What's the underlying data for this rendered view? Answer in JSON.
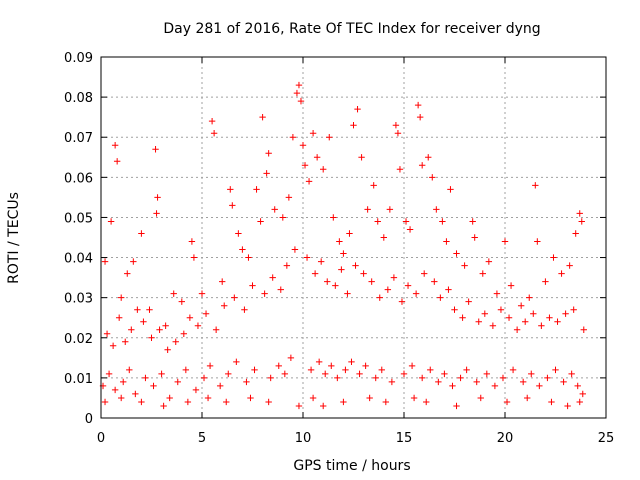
{
  "chart_data": {
    "type": "scatter",
    "title": "Day 281 of 2016, Rate Of TEC Index for receiver dyng",
    "xlabel": "GPS time / hours",
    "ylabel": "ROTI / TECUs",
    "xlim": [
      0,
      25
    ],
    "ylim": [
      0,
      0.09
    ],
    "x_ticks": [
      "0",
      "5",
      "10",
      "15",
      "20",
      "25"
    ],
    "y_ticks": [
      "0",
      "0.01",
      "0.02",
      "0.03",
      "0.04",
      "0.05",
      "0.06",
      "0.07",
      "0.08",
      "0.09"
    ],
    "grid": true,
    "marker": "+",
    "color": "#ff0000",
    "series": [
      {
        "name": "ROTI",
        "points": [
          [
            0.2,
            0.039
          ],
          [
            0.5,
            0.049
          ],
          [
            0.7,
            0.068
          ],
          [
            0.8,
            0.064
          ],
          [
            1.0,
            0.03
          ],
          [
            1.3,
            0.036
          ],
          [
            1.6,
            0.039
          ],
          [
            2.0,
            0.046
          ],
          [
            2.4,
            0.027
          ],
          [
            2.7,
            0.067
          ],
          [
            2.8,
            0.055
          ],
          [
            2.75,
            0.051
          ],
          [
            3.2,
            0.023
          ],
          [
            3.6,
            0.031
          ],
          [
            4.0,
            0.029
          ],
          [
            4.5,
            0.044
          ],
          [
            4.6,
            0.04
          ],
          [
            5.0,
            0.031
          ],
          [
            5.5,
            0.074
          ],
          [
            5.6,
            0.071
          ],
          [
            6.0,
            0.034
          ],
          [
            6.4,
            0.057
          ],
          [
            6.5,
            0.053
          ],
          [
            6.8,
            0.046
          ],
          [
            7.0,
            0.042
          ],
          [
            7.3,
            0.04
          ],
          [
            7.7,
            0.057
          ],
          [
            7.9,
            0.049
          ],
          [
            8.0,
            0.075
          ],
          [
            8.2,
            0.061
          ],
          [
            8.3,
            0.066
          ],
          [
            8.6,
            0.052
          ],
          [
            9.0,
            0.05
          ],
          [
            9.3,
            0.055
          ],
          [
            9.5,
            0.07
          ],
          [
            9.7,
            0.081
          ],
          [
            9.8,
            0.083
          ],
          [
            9.9,
            0.079
          ],
          [
            10.0,
            0.068
          ],
          [
            10.1,
            0.063
          ],
          [
            10.3,
            0.059
          ],
          [
            10.5,
            0.071
          ],
          [
            10.7,
            0.065
          ],
          [
            11.0,
            0.062
          ],
          [
            11.3,
            0.07
          ],
          [
            11.5,
            0.05
          ],
          [
            11.8,
            0.044
          ],
          [
            12.0,
            0.041
          ],
          [
            12.3,
            0.046
          ],
          [
            12.5,
            0.073
          ],
          [
            12.7,
            0.077
          ],
          [
            12.9,
            0.065
          ],
          [
            13.2,
            0.052
          ],
          [
            13.5,
            0.058
          ],
          [
            13.7,
            0.049
          ],
          [
            14.0,
            0.045
          ],
          [
            14.3,
            0.052
          ],
          [
            14.6,
            0.073
          ],
          [
            14.7,
            0.071
          ],
          [
            14.8,
            0.062
          ],
          [
            15.1,
            0.049
          ],
          [
            15.3,
            0.047
          ],
          [
            15.7,
            0.078
          ],
          [
            15.8,
            0.075
          ],
          [
            15.9,
            0.063
          ],
          [
            16.2,
            0.065
          ],
          [
            16.4,
            0.06
          ],
          [
            16.6,
            0.052
          ],
          [
            16.9,
            0.049
          ],
          [
            17.1,
            0.044
          ],
          [
            17.3,
            0.057
          ],
          [
            17.6,
            0.041
          ],
          [
            18.0,
            0.038
          ],
          [
            18.4,
            0.049
          ],
          [
            18.5,
            0.045
          ],
          [
            18.9,
            0.036
          ],
          [
            19.2,
            0.039
          ],
          [
            19.6,
            0.031
          ],
          [
            20.0,
            0.044
          ],
          [
            20.3,
            0.033
          ],
          [
            20.8,
            0.028
          ],
          [
            21.2,
            0.03
          ],
          [
            21.5,
            0.058
          ],
          [
            21.6,
            0.044
          ],
          [
            22.0,
            0.034
          ],
          [
            22.4,
            0.04
          ],
          [
            22.8,
            0.036
          ],
          [
            23.2,
            0.038
          ],
          [
            23.5,
            0.046
          ],
          [
            23.7,
            0.051
          ],
          [
            23.8,
            0.049
          ],
          [
            0.3,
            0.021
          ],
          [
            0.6,
            0.018
          ],
          [
            0.9,
            0.025
          ],
          [
            1.2,
            0.019
          ],
          [
            1.5,
            0.022
          ],
          [
            1.8,
            0.027
          ],
          [
            2.1,
            0.024
          ],
          [
            2.5,
            0.02
          ],
          [
            2.9,
            0.022
          ],
          [
            3.3,
            0.017
          ],
          [
            3.7,
            0.019
          ],
          [
            4.1,
            0.021
          ],
          [
            4.4,
            0.025
          ],
          [
            4.8,
            0.023
          ],
          [
            5.2,
            0.026
          ],
          [
            5.7,
            0.022
          ],
          [
            6.1,
            0.028
          ],
          [
            6.6,
            0.03
          ],
          [
            7.1,
            0.027
          ],
          [
            7.5,
            0.033
          ],
          [
            8.1,
            0.031
          ],
          [
            8.5,
            0.035
          ],
          [
            8.9,
            0.032
          ],
          [
            9.2,
            0.038
          ],
          [
            9.6,
            0.042
          ],
          [
            10.2,
            0.04
          ],
          [
            10.6,
            0.036
          ],
          [
            10.9,
            0.039
          ],
          [
            11.2,
            0.034
          ],
          [
            11.6,
            0.033
          ],
          [
            11.9,
            0.037
          ],
          [
            12.2,
            0.031
          ],
          [
            12.6,
            0.038
          ],
          [
            13.0,
            0.036
          ],
          [
            13.4,
            0.034
          ],
          [
            13.8,
            0.03
          ],
          [
            14.2,
            0.032
          ],
          [
            14.5,
            0.035
          ],
          [
            14.9,
            0.029
          ],
          [
            15.2,
            0.033
          ],
          [
            15.6,
            0.031
          ],
          [
            16.0,
            0.036
          ],
          [
            16.5,
            0.034
          ],
          [
            16.8,
            0.03
          ],
          [
            17.2,
            0.032
          ],
          [
            17.5,
            0.027
          ],
          [
            17.9,
            0.025
          ],
          [
            18.2,
            0.029
          ],
          [
            18.7,
            0.024
          ],
          [
            19.0,
            0.026
          ],
          [
            19.4,
            0.023
          ],
          [
            19.8,
            0.027
          ],
          [
            20.2,
            0.025
          ],
          [
            20.6,
            0.022
          ],
          [
            21.0,
            0.024
          ],
          [
            21.4,
            0.026
          ],
          [
            21.8,
            0.023
          ],
          [
            22.2,
            0.025
          ],
          [
            22.6,
            0.024
          ],
          [
            23.0,
            0.026
          ],
          [
            23.4,
            0.027
          ],
          [
            23.9,
            0.022
          ],
          [
            0.1,
            0.008
          ],
          [
            0.4,
            0.011
          ],
          [
            0.7,
            0.007
          ],
          [
            1.1,
            0.009
          ],
          [
            1.4,
            0.012
          ],
          [
            1.7,
            0.006
          ],
          [
            2.2,
            0.01
          ],
          [
            2.6,
            0.008
          ],
          [
            3.0,
            0.011
          ],
          [
            3.4,
            0.005
          ],
          [
            3.8,
            0.009
          ],
          [
            4.2,
            0.012
          ],
          [
            4.7,
            0.007
          ],
          [
            5.1,
            0.01
          ],
          [
            5.4,
            0.013
          ],
          [
            5.9,
            0.008
          ],
          [
            6.3,
            0.011
          ],
          [
            6.7,
            0.014
          ],
          [
            7.2,
            0.009
          ],
          [
            7.6,
            0.012
          ],
          [
            8.4,
            0.01
          ],
          [
            8.8,
            0.013
          ],
          [
            9.1,
            0.011
          ],
          [
            9.4,
            0.015
          ],
          [
            10.4,
            0.012
          ],
          [
            10.8,
            0.014
          ],
          [
            11.1,
            0.011
          ],
          [
            11.4,
            0.013
          ],
          [
            11.7,
            0.01
          ],
          [
            12.1,
            0.012
          ],
          [
            12.4,
            0.014
          ],
          [
            12.8,
            0.011
          ],
          [
            13.1,
            0.013
          ],
          [
            13.6,
            0.01
          ],
          [
            13.9,
            0.012
          ],
          [
            14.4,
            0.009
          ],
          [
            15.0,
            0.011
          ],
          [
            15.4,
            0.013
          ],
          [
            15.9,
            0.01
          ],
          [
            16.3,
            0.012
          ],
          [
            16.7,
            0.009
          ],
          [
            17.0,
            0.011
          ],
          [
            17.4,
            0.008
          ],
          [
            17.8,
            0.01
          ],
          [
            18.1,
            0.012
          ],
          [
            18.6,
            0.009
          ],
          [
            19.1,
            0.011
          ],
          [
            19.5,
            0.008
          ],
          [
            19.9,
            0.01
          ],
          [
            20.4,
            0.012
          ],
          [
            20.9,
            0.009
          ],
          [
            21.3,
            0.011
          ],
          [
            21.7,
            0.008
          ],
          [
            22.1,
            0.01
          ],
          [
            22.5,
            0.012
          ],
          [
            22.9,
            0.009
          ],
          [
            23.3,
            0.011
          ],
          [
            23.6,
            0.008
          ],
          [
            23.85,
            0.006
          ],
          [
            0.2,
            0.004
          ],
          [
            1.0,
            0.005
          ],
          [
            2.0,
            0.004
          ],
          [
            3.1,
            0.003
          ],
          [
            4.3,
            0.004
          ],
          [
            5.3,
            0.005
          ],
          [
            6.2,
            0.004
          ],
          [
            7.4,
            0.005
          ],
          [
            8.3,
            0.004
          ],
          [
            9.8,
            0.003
          ],
          [
            10.5,
            0.005
          ],
          [
            11.0,
            0.003
          ],
          [
            12.0,
            0.004
          ],
          [
            13.3,
            0.005
          ],
          [
            14.1,
            0.004
          ],
          [
            15.5,
            0.005
          ],
          [
            16.1,
            0.004
          ],
          [
            17.6,
            0.003
          ],
          [
            18.8,
            0.005
          ],
          [
            20.1,
            0.004
          ],
          [
            21.1,
            0.005
          ],
          [
            22.3,
            0.004
          ],
          [
            23.1,
            0.003
          ],
          [
            23.7,
            0.004
          ]
        ]
      }
    ]
  }
}
